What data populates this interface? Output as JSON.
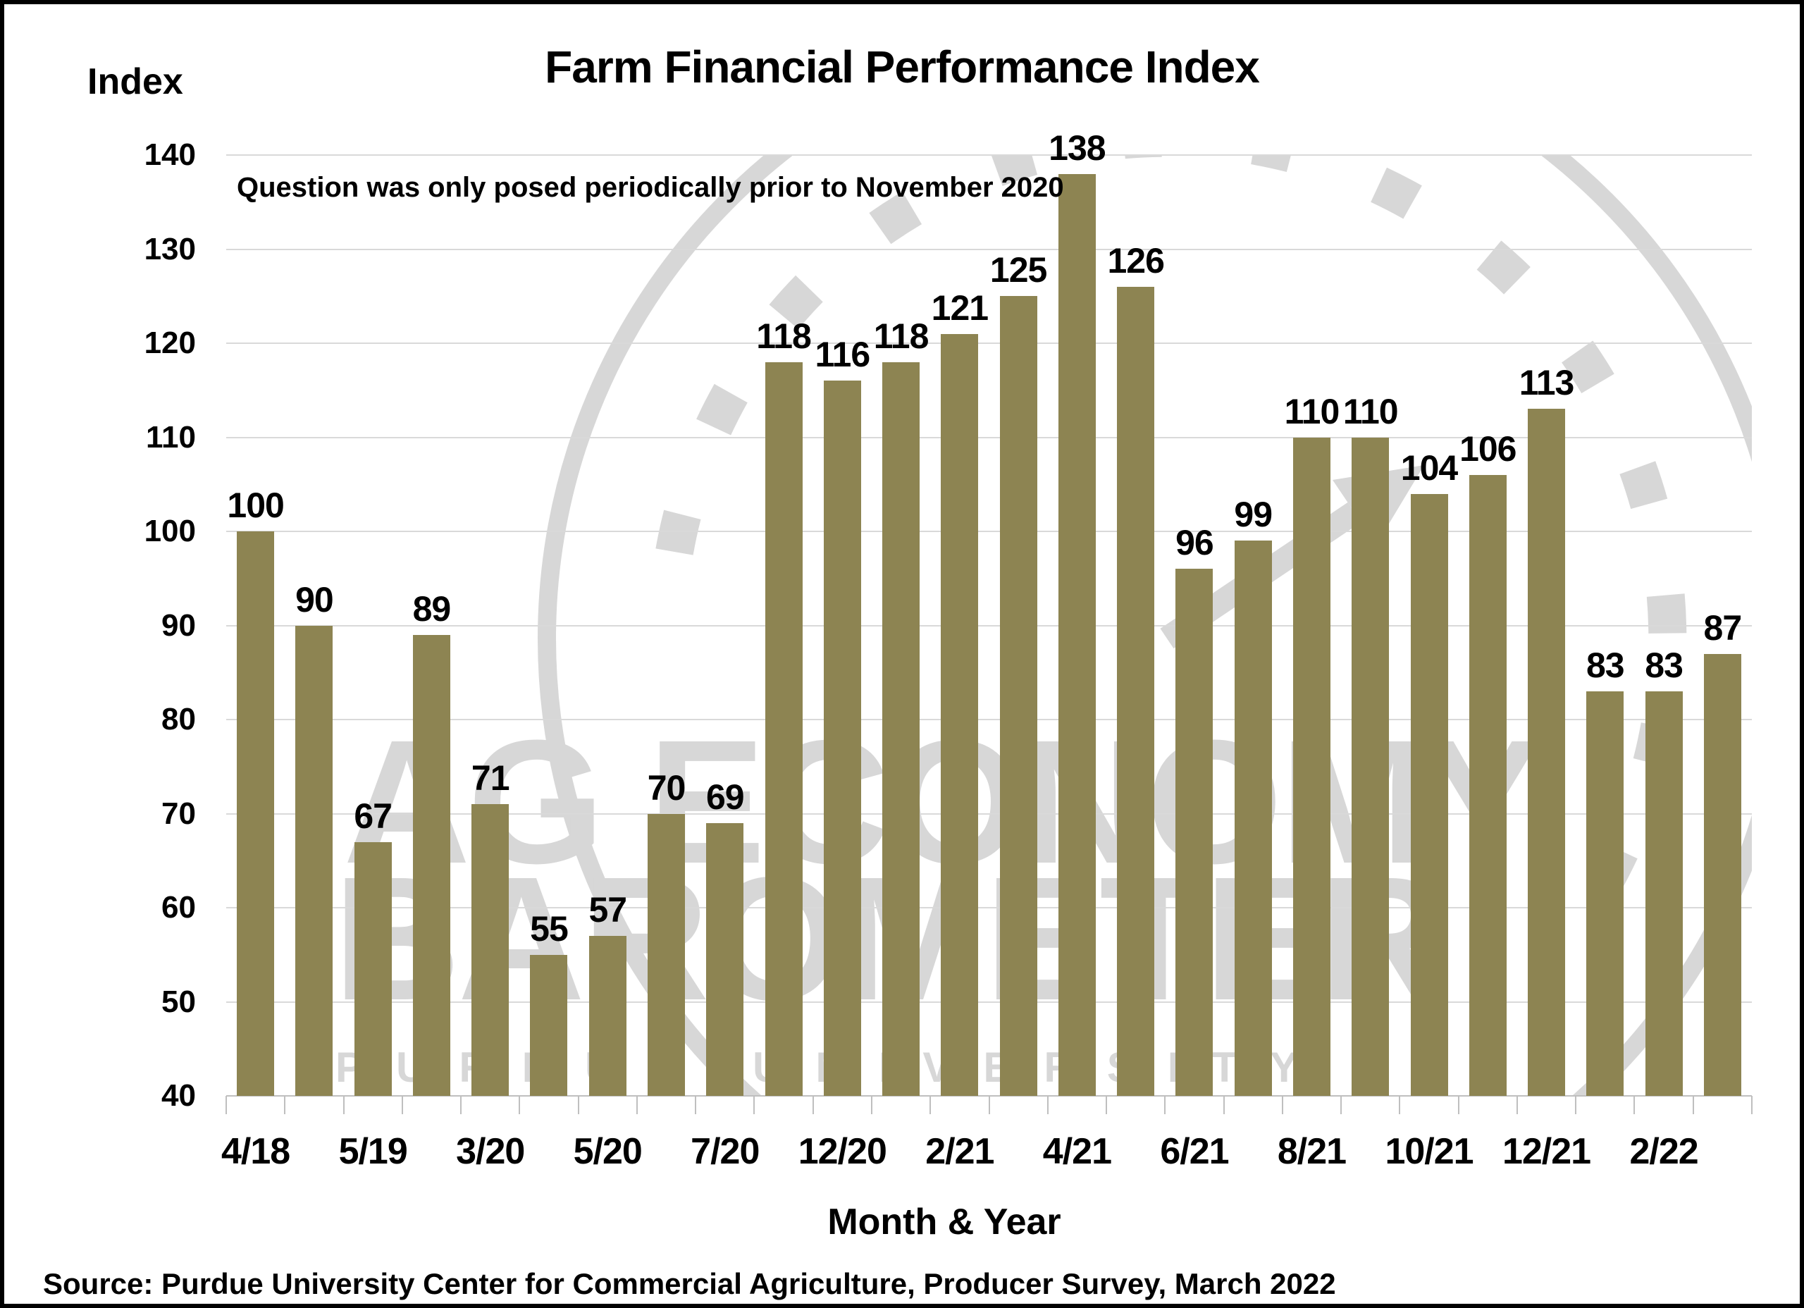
{
  "title": "Farm Financial Performance Index",
  "y_axis_unit_label": "Index",
  "annotation": "Question was only posed periodically prior to November 2020",
  "x_axis_title": "Month & Year",
  "source": "Source: Purdue University Center for Commercial Agriculture, Producer Survey, March 2022",
  "watermark": {
    "line1": "AG ECONOMY",
    "line2": "BAROMETER",
    "line3": "PURDUE UNIVERSITY",
    "gauge_icon": "speedometer-gauge"
  },
  "colors": {
    "bar": "#8D8452",
    "gridline": "#D9D9D9",
    "axis_line": "#BFBFBF",
    "watermark": "#D7D7D7",
    "text": "#000000",
    "background": "#FFFFFF",
    "border": "#000000"
  },
  "chart_data": {
    "type": "bar",
    "title": "Farm Financial Performance Index",
    "xlabel": "Month & Year",
    "ylabel": "Index",
    "ylim": [
      40,
      140
    ],
    "y_ticks": [
      140,
      130,
      120,
      110,
      100,
      90,
      80,
      70,
      60,
      50,
      40
    ],
    "grid": true,
    "legend_position": "none",
    "data_labels": true,
    "bar_color": "#8D8452",
    "values": [
      100,
      90,
      67,
      89,
      71,
      55,
      57,
      70,
      69,
      118,
      116,
      118,
      121,
      125,
      138,
      126,
      96,
      99,
      110,
      110,
      104,
      106,
      113,
      83,
      83,
      87
    ],
    "x_tick_labels": [
      "4/18",
      "5/19",
      "3/20",
      "5/20",
      "7/20",
      "12/20",
      "2/21",
      "4/21",
      "6/21",
      "8/21",
      "10/21",
      "12/21",
      "2/22"
    ],
    "x_tick_label_bar_indices": [
      0,
      2,
      4,
      6,
      8,
      10,
      12,
      14,
      16,
      18,
      20,
      22,
      24
    ]
  }
}
